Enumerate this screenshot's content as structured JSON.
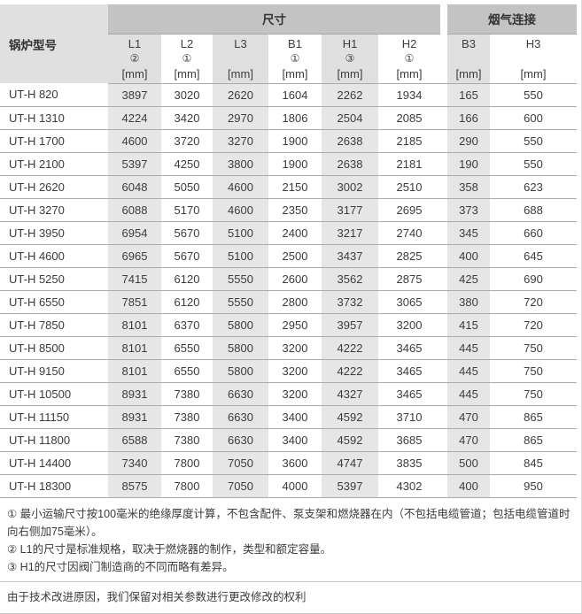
{
  "table": {
    "model_header": "锅炉型号",
    "group_headers": [
      {
        "label": "尺寸"
      },
      {
        "label": "烟气连接"
      }
    ],
    "columns": [
      {
        "name": "L1",
        "note": "②",
        "unit": "[mm]",
        "shaded": true
      },
      {
        "name": "L2",
        "note": "①",
        "unit": "[mm]",
        "shaded": false
      },
      {
        "name": "L3",
        "note": "",
        "unit": "[mm]",
        "shaded": true
      },
      {
        "name": "B1",
        "note": "①",
        "unit": "[mm]",
        "shaded": false
      },
      {
        "name": "H1",
        "note": "③",
        "unit": "[mm]",
        "shaded": true
      },
      {
        "name": "H2",
        "note": "①",
        "unit": "[mm]",
        "shaded": false
      },
      {
        "name": "B3",
        "note": "",
        "unit": "[mm]",
        "shaded": true
      },
      {
        "name": "H3",
        "note": "",
        "unit": "[mm]",
        "shaded": false
      }
    ],
    "rows": [
      {
        "model": "UT-H 820",
        "values": [
          3897,
          3020,
          2620,
          1604,
          2262,
          1934,
          165,
          550
        ]
      },
      {
        "model": "UT-H 1310",
        "values": [
          4224,
          3420,
          2970,
          1806,
          2504,
          2085,
          166,
          600
        ]
      },
      {
        "model": "UT-H 1700",
        "values": [
          4600,
          3720,
          3270,
          1900,
          2638,
          2185,
          290,
          550
        ]
      },
      {
        "model": "UT-H 2100",
        "values": [
          5397,
          4250,
          3800,
          1900,
          2638,
          2181,
          190,
          550
        ]
      },
      {
        "model": "UT-H 2620",
        "values": [
          6048,
          5050,
          4600,
          2150,
          3002,
          2510,
          358,
          623
        ]
      },
      {
        "model": "UT-H 3270",
        "values": [
          6088,
          5170,
          4600,
          2350,
          3177,
          2695,
          373,
          688
        ]
      },
      {
        "model": "UT-H 3950",
        "values": [
          6954,
          5670,
          5100,
          2400,
          3217,
          2740,
          345,
          660
        ]
      },
      {
        "model": "UT-H 4600",
        "values": [
          6965,
          5670,
          5100,
          2500,
          3437,
          2825,
          400,
          645
        ]
      },
      {
        "model": "UT-H 5250",
        "values": [
          7415,
          6120,
          5550,
          2600,
          3562,
          2875,
          425,
          690
        ]
      },
      {
        "model": "UT-H 6550",
        "values": [
          7851,
          6120,
          5550,
          2800,
          3732,
          3065,
          380,
          720
        ]
      },
      {
        "model": "UT-H 7850",
        "values": [
          8101,
          6370,
          5800,
          2950,
          3957,
          3200,
          415,
          720
        ]
      },
      {
        "model": "UT-H 8500",
        "values": [
          8101,
          6550,
          5800,
          3200,
          4222,
          3465,
          445,
          750
        ]
      },
      {
        "model": "UT-H 9150",
        "values": [
          8101,
          6550,
          5800,
          3200,
          4222,
          3465,
          445,
          750
        ]
      },
      {
        "model": "UT-H 10500",
        "values": [
          8931,
          7380,
          6630,
          3200,
          4327,
          3465,
          445,
          750
        ]
      },
      {
        "model": "UT-H 11150",
        "values": [
          8931,
          7380,
          6630,
          3400,
          4592,
          3710,
          470,
          865
        ]
      },
      {
        "model": "UT-H 11800",
        "values": [
          6588,
          7380,
          6630,
          3400,
          4592,
          3685,
          470,
          865
        ]
      },
      {
        "model": "UT-H 14400",
        "values": [
          7340,
          7800,
          7050,
          3600,
          4747,
          3835,
          500,
          845
        ]
      },
      {
        "model": "UT-H 18300",
        "values": [
          8575,
          7800,
          7050,
          4000,
          5397,
          4302,
          400,
          950
        ]
      }
    ]
  },
  "footnotes": [
    "① 最小运输尺寸按100毫米的绝缘厚度计算，不包含配件、泵支架和燃烧器在内（不包括电缆管道；包括电缆管道时向右侧加75毫米）。",
    "② L1的尺寸是标准规格，取决于燃烧器的制作，类型和额定容量。",
    "③ H1的尺寸因阀门制造商的不同而略有差异。"
  ],
  "disclaimer": "由于技术改进原因，我们保留对相关参数进行更改修改的权利",
  "colors": {
    "band_gray": "#c3c3c3",
    "header_gray": "#e0e0e0",
    "shaded_column": "#e6e6e6",
    "row_line": "#ababab",
    "divider_line": "#c8c8c8",
    "text": "#3c3c3c"
  }
}
